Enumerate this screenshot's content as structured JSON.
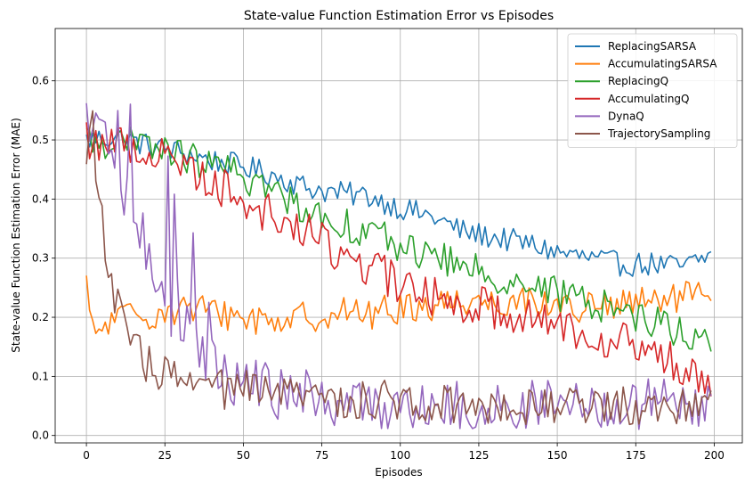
{
  "chart_data": {
    "type": "line",
    "title": "State-value Function Estimation Error vs Episodes",
    "xlabel": "Episodes",
    "ylabel": "State-value Function Estimation Error (MAE)",
    "xlim": [
      -9.95,
      208.95
    ],
    "ylim": [
      -0.0125,
      0.6885
    ],
    "xticks": [
      0,
      25,
      50,
      75,
      100,
      125,
      150,
      175,
      200
    ],
    "yticks": [
      0.0,
      0.1,
      0.2,
      0.3,
      0.4,
      0.5,
      0.6
    ],
    "xtick_labels": [
      "0",
      "25",
      "50",
      "75",
      "100",
      "125",
      "150",
      "175",
      "200"
    ],
    "ytick_labels": [
      "0.0",
      "0.1",
      "0.2",
      "0.3",
      "0.4",
      "0.5",
      "0.6"
    ],
    "grid": true,
    "legend_position": "top-right",
    "episodes": 200,
    "series": [
      {
        "name": "ReplacingSARSA",
        "color": "#1f77b4",
        "anchors": [
          [
            0,
            0.5
          ],
          [
            10,
            0.505
          ],
          [
            20,
            0.49
          ],
          [
            30,
            0.48
          ],
          [
            40,
            0.465
          ],
          [
            50,
            0.455
          ],
          [
            60,
            0.44
          ],
          [
            70,
            0.42
          ],
          [
            80,
            0.41
          ],
          [
            90,
            0.405
          ],
          [
            100,
            0.385
          ],
          [
            110,
            0.37
          ],
          [
            120,
            0.345
          ],
          [
            130,
            0.335
          ],
          [
            140,
            0.325
          ],
          [
            150,
            0.31
          ],
          [
            160,
            0.3
          ],
          [
            170,
            0.29
          ],
          [
            180,
            0.29
          ],
          [
            190,
            0.285
          ],
          [
            199,
            0.305
          ]
        ],
        "noise": 0.013
      },
      {
        "name": "AccumulatingSARSA",
        "color": "#ff7f0e",
        "anchors": [
          [
            0,
            0.255
          ],
          [
            2,
            0.17
          ],
          [
            10,
            0.2
          ],
          [
            20,
            0.205
          ],
          [
            30,
            0.215
          ],
          [
            40,
            0.21
          ],
          [
            50,
            0.2
          ],
          [
            60,
            0.195
          ],
          [
            70,
            0.2
          ],
          [
            80,
            0.21
          ],
          [
            90,
            0.205
          ],
          [
            100,
            0.215
          ],
          [
            110,
            0.22
          ],
          [
            120,
            0.23
          ],
          [
            130,
            0.225
          ],
          [
            140,
            0.23
          ],
          [
            150,
            0.22
          ],
          [
            160,
            0.215
          ],
          [
            170,
            0.22
          ],
          [
            180,
            0.225
          ],
          [
            190,
            0.235
          ],
          [
            199,
            0.23
          ]
        ],
        "noise": 0.017
      },
      {
        "name": "ReplacingQ",
        "color": "#2ca02c",
        "anchors": [
          [
            0,
            0.5
          ],
          [
            10,
            0.495
          ],
          [
            20,
            0.49
          ],
          [
            30,
            0.475
          ],
          [
            40,
            0.455
          ],
          [
            50,
            0.44
          ],
          [
            60,
            0.41
          ],
          [
            70,
            0.385
          ],
          [
            80,
            0.36
          ],
          [
            90,
            0.345
          ],
          [
            100,
            0.32
          ],
          [
            110,
            0.305
          ],
          [
            120,
            0.285
          ],
          [
            130,
            0.27
          ],
          [
            140,
            0.255
          ],
          [
            150,
            0.24
          ],
          [
            160,
            0.225
          ],
          [
            170,
            0.215
          ],
          [
            180,
            0.195
          ],
          [
            190,
            0.175
          ],
          [
            199,
            0.155
          ]
        ],
        "noise": 0.018
      },
      {
        "name": "AccumulatingQ",
        "color": "#d62728",
        "anchors": [
          [
            0,
            0.5
          ],
          [
            10,
            0.495
          ],
          [
            20,
            0.48
          ],
          [
            30,
            0.465
          ],
          [
            40,
            0.43
          ],
          [
            50,
            0.4
          ],
          [
            60,
            0.37
          ],
          [
            70,
            0.345
          ],
          [
            80,
            0.31
          ],
          [
            90,
            0.285
          ],
          [
            100,
            0.255
          ],
          [
            110,
            0.235
          ],
          [
            120,
            0.225
          ],
          [
            130,
            0.215
          ],
          [
            140,
            0.205
          ],
          [
            150,
            0.19
          ],
          [
            160,
            0.175
          ],
          [
            170,
            0.16
          ],
          [
            180,
            0.14
          ],
          [
            190,
            0.115
          ],
          [
            199,
            0.095
          ]
        ],
        "noise": 0.022
      },
      {
        "name": "DynaQ",
        "color": "#9467bd",
        "anchors": [
          [
            0,
            0.515
          ],
          [
            8,
            0.5
          ],
          [
            12,
            0.42
          ],
          [
            16,
            0.38
          ],
          [
            20,
            0.3
          ],
          [
            25,
            0.22
          ],
          [
            30,
            0.19
          ],
          [
            35,
            0.15
          ],
          [
            40,
            0.12
          ],
          [
            50,
            0.09
          ],
          [
            60,
            0.07
          ],
          [
            70,
            0.065
          ],
          [
            80,
            0.055
          ],
          [
            90,
            0.05
          ],
          [
            100,
            0.05
          ],
          [
            120,
            0.05
          ],
          [
            140,
            0.05
          ],
          [
            160,
            0.048
          ],
          [
            180,
            0.048
          ],
          [
            199,
            0.045
          ]
        ],
        "noise": 0.03
      },
      {
        "name": "TrajectorySampling",
        "color": "#8c564b",
        "anchors": [
          [
            0,
            0.49
          ],
          [
            2,
            0.53
          ],
          [
            4,
            0.4
          ],
          [
            6,
            0.32
          ],
          [
            8,
            0.25
          ],
          [
            12,
            0.18
          ],
          [
            18,
            0.13
          ],
          [
            25,
            0.1
          ],
          [
            30,
            0.09
          ],
          [
            40,
            0.08
          ],
          [
            50,
            0.075
          ],
          [
            60,
            0.07
          ],
          [
            70,
            0.065
          ],
          [
            80,
            0.06
          ],
          [
            90,
            0.06
          ],
          [
            100,
            0.058
          ],
          [
            120,
            0.055
          ],
          [
            140,
            0.053
          ],
          [
            160,
            0.05
          ],
          [
            180,
            0.05
          ],
          [
            199,
            0.06
          ]
        ],
        "noise": 0.022
      }
    ]
  }
}
